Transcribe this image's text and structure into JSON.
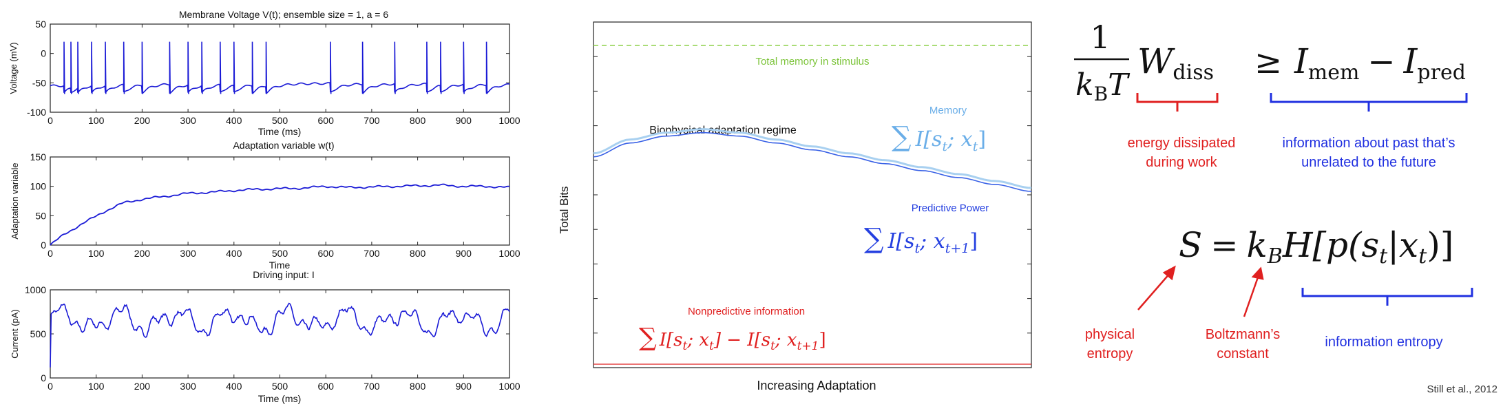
{
  "colors": {
    "trace": "#1a1ad6",
    "memory": "#6aaee8",
    "predictive": "#2540e0",
    "nonpredictive": "#e02020",
    "total_memory": "#8ed04a",
    "black": "#111111",
    "red_brace": "#e02020",
    "blue_brace": "#2030e0"
  },
  "chart_data": [
    {
      "type": "line",
      "title": "Membrane Voltage V(t); ensemble size = 1, a = 6",
      "xlabel": "Time (ms)",
      "ylabel": "Voltage (mV)",
      "xlim": [
        0,
        1000
      ],
      "ylim": [
        -100,
        50
      ],
      "x_ticks": [
        "0",
        "100",
        "200",
        "300",
        "400",
        "500",
        "600",
        "700",
        "800",
        "900",
        "1000"
      ],
      "y_ticks": [
        "50",
        "0",
        "-50",
        "-100"
      ],
      "series": [
        {
          "values_description_free": true,
          "resting_level": -55,
          "spike_peak": 20,
          "spike_times": [
            30,
            45,
            60,
            90,
            120,
            160,
            200,
            260,
            300,
            330,
            370,
            400,
            440,
            470,
            610,
            680,
            750,
            820,
            850,
            900,
            950
          ]
        }
      ]
    },
    {
      "type": "line",
      "title": "Adaptation variable w(t)",
      "xlabel": "Time",
      "ylabel": "Adaptation variable",
      "xlim": [
        0,
        1000
      ],
      "ylim": [
        0,
        150
      ],
      "x_ticks": [
        "0",
        "100",
        "200",
        "300",
        "400",
        "500",
        "600",
        "700",
        "800",
        "900",
        "1000"
      ],
      "y_ticks": [
        "150",
        "100",
        "50",
        "0"
      ],
      "series": [
        {
          "x": [
            0,
            30,
            60,
            90,
            120,
            160,
            200,
            260,
            300,
            350,
            400,
            450,
            500,
            550,
            600,
            650,
            700,
            750,
            800,
            850,
            900,
            950,
            1000
          ],
          "values": [
            0,
            18,
            32,
            45,
            58,
            72,
            78,
            84,
            88,
            90,
            93,
            95,
            96,
            97,
            100,
            98,
            99,
            100,
            101,
            102,
            100,
            100,
            98
          ]
        }
      ]
    },
    {
      "type": "line",
      "title": "Driving input: I",
      "xlabel": "Time (ms)",
      "ylabel": "Current (pA)",
      "xlim": [
        0,
        1000
      ],
      "ylim": [
        0,
        1000
      ],
      "x_ticks": [
        "0",
        "100",
        "200",
        "300",
        "400",
        "500",
        "600",
        "700",
        "800",
        "900",
        "1000"
      ],
      "y_ticks": [
        "1000",
        "500",
        "0"
      ],
      "series": [
        {
          "mean": 650,
          "amplitude": 180
        }
      ]
    },
    {
      "type": "line",
      "title": "",
      "xlabel": "Increasing Adaptation",
      "ylabel": "Total Bits",
      "series": [
        {
          "values": [
            0.62,
            0.66,
            0.68,
            0.69,
            0.68,
            0.66,
            0.64,
            0.62,
            0.6,
            0.58,
            0.56,
            0.54,
            0.52
          ]
        },
        {
          "values": [
            0.61,
            0.65,
            0.67,
            0.68,
            0.67,
            0.65,
            0.63,
            0.61,
            0.59,
            0.57,
            0.55,
            0.53,
            0.51
          ]
        },
        {
          "values": [
            0.01,
            0.01,
            0.01,
            0.01,
            0.01,
            0.01,
            0.01,
            0.01,
            0.01,
            0.01,
            0.01,
            0.01,
            0.01
          ]
        },
        {
          "values": [
            0.95,
            0.95,
            0.95,
            0.95,
            0.95,
            0.95,
            0.95,
            0.95,
            0.95,
            0.95,
            0.95,
            0.95,
            0.95
          ]
        }
      ],
      "annotations": {
        "total_memory": "Total memory in stimulus",
        "regime": "Biophysical adaptation regime",
        "memory_label": "Memory",
        "predictive_label": "Predictive Power",
        "nonpredictive_label": "Nonpredictive information"
      }
    }
  ],
  "equations": {
    "eq1": {
      "numerator": "1",
      "denominator": "k",
      "denominator_sub": "B",
      "denominator_tail": "T",
      "w": "W",
      "w_sub": "diss",
      "rel": "≥",
      "imem": "I",
      "imem_sub": "mem",
      "minus": "−",
      "ipred": "I",
      "ipred_sub": "pred",
      "red_note_line1": "energy dissipated",
      "red_note_line2": "during work",
      "blue_note_line1": "information about past that’s",
      "blue_note_line2": "unrelated to the future"
    },
    "eq2": {
      "lhs": "S",
      "eq": "=",
      "k": "k",
      "k_sub": "B",
      "h": "H[p(s",
      "s_sub": "t",
      "bar": "|x",
      "x_sub": "t",
      "close": ")]",
      "phys_line1": "physical",
      "phys_line2": "entropy",
      "boltz_line1": "Boltzmann’s",
      "boltz_line2": "constant",
      "info": "information entropy"
    },
    "memory_formula": {
      "sum": "∑",
      "body": "I[s",
      "s_sub": "t",
      "mid": "; x",
      "x_sub": "t",
      "close": "]"
    },
    "pred_formula": {
      "sum": "∑",
      "body": "I[s",
      "s_sub": "t",
      "mid": "; x",
      "x_sub": "t+1",
      "close": "]"
    },
    "nonpred_formula": {
      "sum": "∑",
      "a": "I[s",
      "a_sub": "t",
      "b": "; x",
      "b_sub": "t",
      "c": "] − I[s",
      "c_sub": "t",
      "d": "; x",
      "d_sub": "t+1",
      "e": "]"
    }
  },
  "citation": "Still et al., 2012"
}
